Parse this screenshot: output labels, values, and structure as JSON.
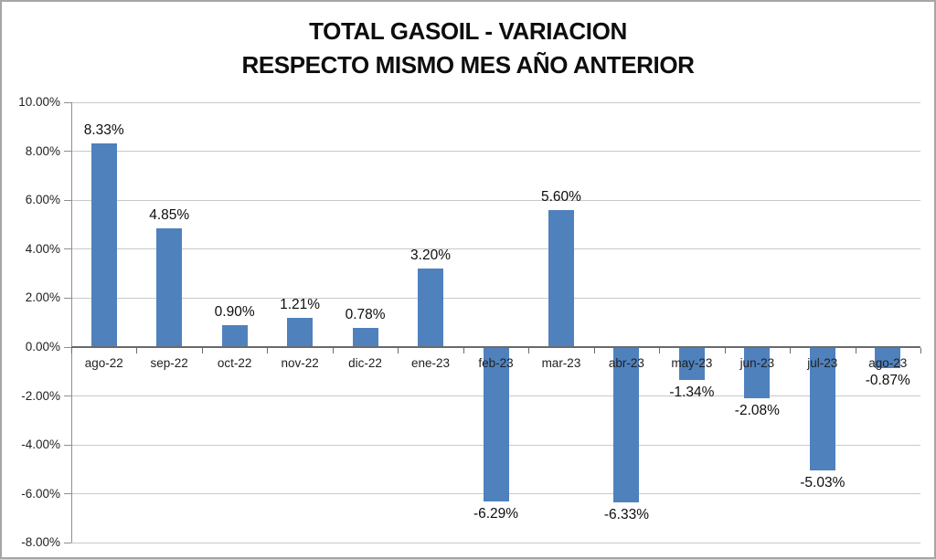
{
  "title": {
    "line1": "TOTAL GASOIL - VARIACION",
    "line2": "RESPECTO MISMO MES AÑO ANTERIOR"
  },
  "chart_data": {
    "type": "bar",
    "title": "TOTAL GASOIL - VARIACION RESPECTO MISMO MES AÑO ANTERIOR",
    "categories": [
      "ago-22",
      "sep-22",
      "oct-22",
      "nov-22",
      "dic-22",
      "ene-23",
      "feb-23",
      "mar-23",
      "abr-23",
      "may-23",
      "jun-23",
      "jul-23",
      "ago-23"
    ],
    "values": [
      8.33,
      4.85,
      0.9,
      1.21,
      0.78,
      3.2,
      -6.29,
      5.6,
      -6.33,
      -1.34,
      -2.08,
      -5.03,
      -0.87
    ],
    "data_labels": [
      "8.33%",
      "4.85%",
      "0.90%",
      "1.21%",
      "0.78%",
      "3.20%",
      "-6.29%",
      "5.60%",
      "-6.33%",
      "-1.34%",
      "-2.08%",
      "-5.03%",
      "-0.87%"
    ],
    "xlabel": "",
    "ylabel": "",
    "ylim": [
      -8,
      10
    ],
    "ytick_step": 2,
    "ytick_labels": [
      "10.00%",
      "8.00%",
      "6.00%",
      "4.00%",
      "2.00%",
      "0.00%",
      "-2.00%",
      "-4.00%",
      "-6.00%",
      "-8.00%"
    ],
    "grid": true,
    "legend": "none",
    "colors": {
      "bar": "#4f81bd",
      "gridline": "#c9c9c9",
      "zero_axis": "#6a6a6a",
      "value_axis": "#8f8f8f",
      "text": "#0d0d0d",
      "outer_border": "#a6a6a6"
    }
  }
}
